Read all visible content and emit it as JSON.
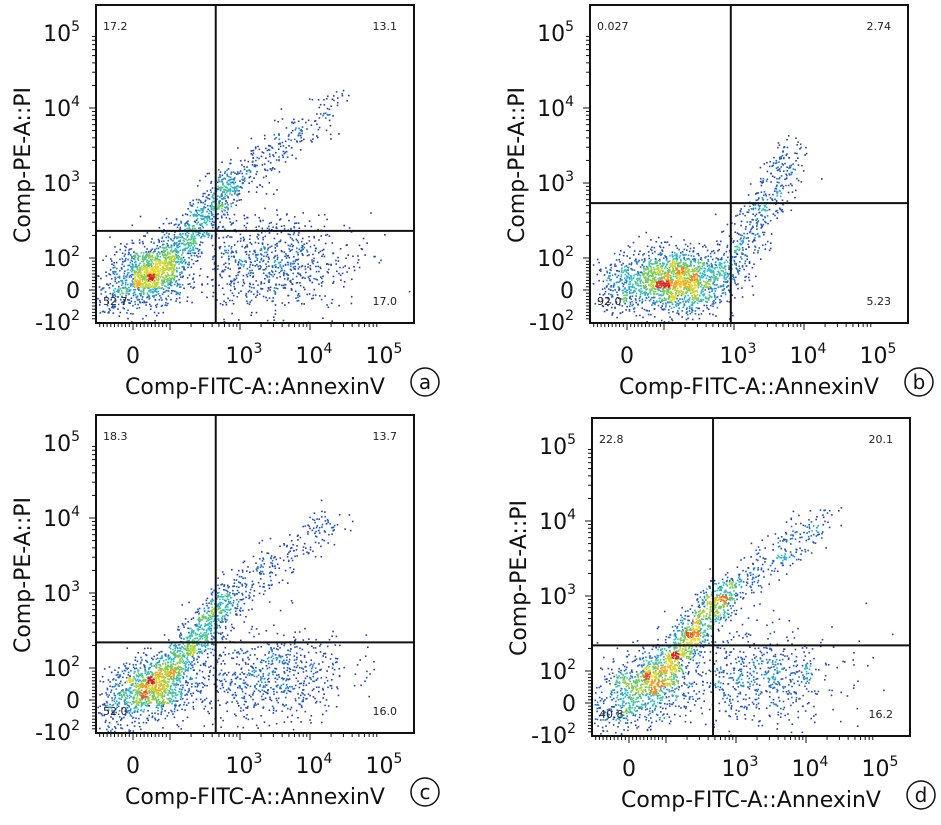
{
  "chart_data": [
    {
      "type": "scatter",
      "panel": "a",
      "xlabel": "Comp-FITC-A::AnnexinV",
      "ylabel": "Comp-PE-A::PI",
      "x_scale": "biexponential",
      "y_scale": "biexponential",
      "xticks": [
        {
          "base": "0",
          "exp": ""
        },
        {
          "base": "10",
          "exp": "3"
        },
        {
          "base": "10",
          "exp": "4"
        },
        {
          "base": "10",
          "exp": "5"
        }
      ],
      "yticks": [
        {
          "base": "-10",
          "exp": "2"
        },
        {
          "base": "0",
          "exp": ""
        },
        {
          "base": "10",
          "exp": "2"
        },
        {
          "base": "10",
          "exp": "3"
        },
        {
          "base": "10",
          "exp": "4"
        },
        {
          "base": "10",
          "exp": "5"
        }
      ],
      "gate": {
        "x": 450,
        "y": 230
      },
      "quadrants": {
        "upper_left": "17.2",
        "upper_right": "13.1",
        "lower_left": "52.7",
        "lower_right": "17.0"
      }
    },
    {
      "type": "scatter",
      "panel": "b",
      "xlabel": "Comp-FITC-A::AnnexinV",
      "ylabel": "Comp-PE-A::PI",
      "x_scale": "biexponential",
      "y_scale": "biexponential",
      "xticks": [
        {
          "base": "0",
          "exp": ""
        },
        {
          "base": "10",
          "exp": "3"
        },
        {
          "base": "10",
          "exp": "4"
        },
        {
          "base": "10",
          "exp": "5"
        }
      ],
      "yticks": [
        {
          "base": "-10",
          "exp": "2"
        },
        {
          "base": "0",
          "exp": ""
        },
        {
          "base": "10",
          "exp": "2"
        },
        {
          "base": "10",
          "exp": "3"
        },
        {
          "base": "10",
          "exp": "4"
        },
        {
          "base": "10",
          "exp": "5"
        }
      ],
      "gate": {
        "x": 900,
        "y": 540
      },
      "quadrants": {
        "upper_left": "0.027",
        "upper_right": "2.74",
        "lower_left": "92.0",
        "lower_right": "5.23"
      }
    },
    {
      "type": "scatter",
      "panel": "c",
      "xlabel": "Comp-FITC-A::AnnexinV",
      "ylabel": "Comp-PE-A::PI",
      "x_scale": "biexponential",
      "y_scale": "biexponential",
      "xticks": [
        {
          "base": "0",
          "exp": ""
        },
        {
          "base": "10",
          "exp": "3"
        },
        {
          "base": "10",
          "exp": "4"
        },
        {
          "base": "10",
          "exp": "5"
        }
      ],
      "yticks": [
        {
          "base": "-10",
          "exp": "2"
        },
        {
          "base": "0",
          "exp": ""
        },
        {
          "base": "10",
          "exp": "2"
        },
        {
          "base": "10",
          "exp": "3"
        },
        {
          "base": "10",
          "exp": "4"
        },
        {
          "base": "10",
          "exp": "5"
        }
      ],
      "gate": {
        "x": 450,
        "y": 220
      },
      "quadrants": {
        "upper_left": "18.3",
        "upper_right": "13.7",
        "lower_left": "52.0",
        "lower_right": "16.0"
      }
    },
    {
      "type": "scatter",
      "panel": "d",
      "xlabel": "Comp-FITC-A::AnnexinV",
      "ylabel": "Comp-PE-A::PI",
      "x_scale": "biexponential",
      "y_scale": "biexponential",
      "xticks": [
        {
          "base": "0",
          "exp": ""
        },
        {
          "base": "10",
          "exp": "3"
        },
        {
          "base": "10",
          "exp": "4"
        },
        {
          "base": "10",
          "exp": "5"
        }
      ],
      "yticks": [
        {
          "base": "-10",
          "exp": "2"
        },
        {
          "base": "0",
          "exp": ""
        },
        {
          "base": "10",
          "exp": "2"
        },
        {
          "base": "10",
          "exp": "3"
        },
        {
          "base": "10",
          "exp": "4"
        },
        {
          "base": "10",
          "exp": "5"
        }
      ],
      "gate": {
        "x": 470,
        "y": 220
      },
      "quadrants": {
        "upper_left": "22.8",
        "upper_right": "20.1",
        "lower_left": "40.8",
        "lower_right": "16.2"
      }
    }
  ]
}
